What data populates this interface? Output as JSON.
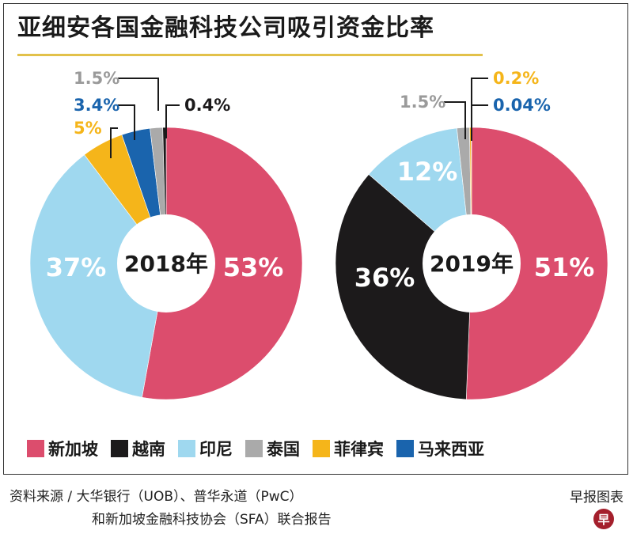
{
  "title": "亚细安各国金融科技公司吸引资金比率",
  "colors": {
    "新加坡": "#dc4d6d",
    "越南": "#1c1a1b",
    "印尼": "#9fd8ef",
    "泰国": "#aaaaaa",
    "菲律宾": "#f5b51a",
    "马来西亚": "#1a64ad"
  },
  "chart_data": [
    {
      "type": "pie",
      "title": "2018年",
      "slices": [
        {
          "label": "新加坡",
          "value": 53,
          "display": "53%"
        },
        {
          "label": "印尼",
          "value": 37,
          "display": "37%"
        },
        {
          "label": "菲律宾",
          "value": 5,
          "display": "5%"
        },
        {
          "label": "马来西亚",
          "value": 3.4,
          "display": "3.4%"
        },
        {
          "label": "泰国",
          "value": 1.5,
          "display": "1.5%"
        },
        {
          "label": "越南",
          "value": 0.4,
          "display": "0.4%"
        }
      ]
    },
    {
      "type": "pie",
      "title": "2019年",
      "slices": [
        {
          "label": "新加坡",
          "value": 51,
          "display": "51%"
        },
        {
          "label": "越南",
          "value": 36,
          "display": "36%"
        },
        {
          "label": "印尼",
          "value": 12,
          "display": "12%"
        },
        {
          "label": "泰国",
          "value": 1.5,
          "display": "1.5%"
        },
        {
          "label": "菲律宾",
          "value": 0.2,
          "display": "0.2%"
        },
        {
          "label": "马来西亚",
          "value": 0.04,
          "display": "0.04%"
        }
      ]
    }
  ],
  "legend": [
    "新加坡",
    "越南",
    "印尼",
    "泰国",
    "菲律宾",
    "马来西亚"
  ],
  "source": {
    "line1": "资料来源 / 大华银行（UOB）、普华永道（PwC）",
    "line2": "和新加坡金融科技协会（SFA）联合报告"
  },
  "credit": "早报图表",
  "logo_text": "早"
}
